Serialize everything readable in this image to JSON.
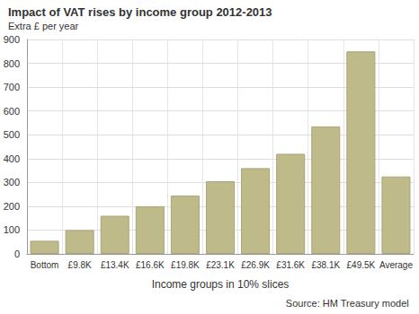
{
  "chart_data": {
    "type": "bar",
    "title": "Impact of VAT rises by income group 2012-2013",
    "subtitle": "Extra £ per year",
    "x_label": "Income groups in 10% slices",
    "source": "Source: HM Treasury model",
    "categories": [
      "Bottom",
      "£9.8K",
      "£13.4K",
      "£16.6K",
      "£19.8K",
      "£23.1K",
      "£26.9K",
      "£31.6K",
      "£38.1K",
      "£49.5K",
      "Average"
    ],
    "values": [
      55,
      100,
      160,
      200,
      245,
      305,
      360,
      420,
      535,
      850,
      325
    ],
    "color": "#bfba8a",
    "ylim": [
      0,
      900
    ],
    "yticks": [
      0,
      100,
      200,
      300,
      400,
      500,
      600,
      700,
      800,
      900
    ],
    "grid": true
  }
}
